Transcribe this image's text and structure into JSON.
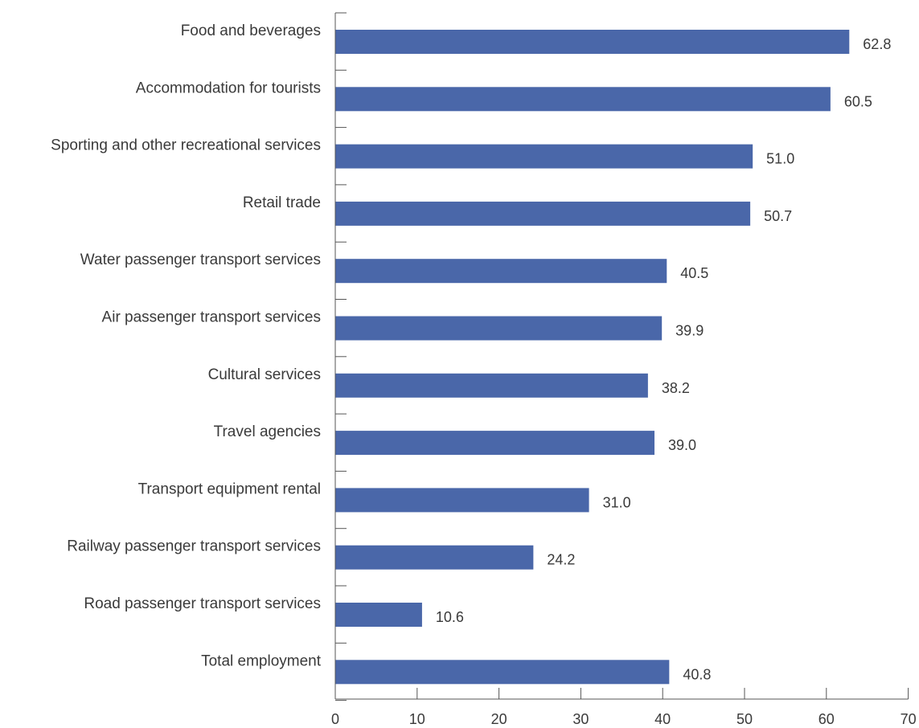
{
  "chart_data": {
    "type": "bar",
    "orientation": "horizontal",
    "categories": [
      "Food and beverages",
      "Accommodation for tourists",
      "Sporting and other recreational services",
      "Retail trade",
      "Water passenger transport services",
      "Air passenger transport services",
      "Cultural services",
      "Travel agencies",
      "Transport equipment rental",
      "Railway passenger transport services",
      "Road passenger transport services",
      "Total employment"
    ],
    "values": [
      62.8,
      60.5,
      51.0,
      50.7,
      40.5,
      39.9,
      38.2,
      39.0,
      31.0,
      24.2,
      10.6,
      40.8
    ],
    "value_labels": [
      "62.8",
      "60.5",
      "51.0",
      "50.7",
      "40.5",
      "39.9",
      "38.2",
      "39.0",
      "31.0",
      "24.2",
      "10.6",
      "40.8"
    ],
    "xlim": [
      0,
      70
    ],
    "xticks": [
      0,
      10,
      20,
      30,
      40,
      50,
      60,
      70
    ],
    "xtick_labels": [
      "0",
      "10",
      "20",
      "30",
      "40",
      "50",
      "60",
      "70"
    ],
    "bar_color": "#4a67a9",
    "grid": false,
    "legend": "none"
  }
}
